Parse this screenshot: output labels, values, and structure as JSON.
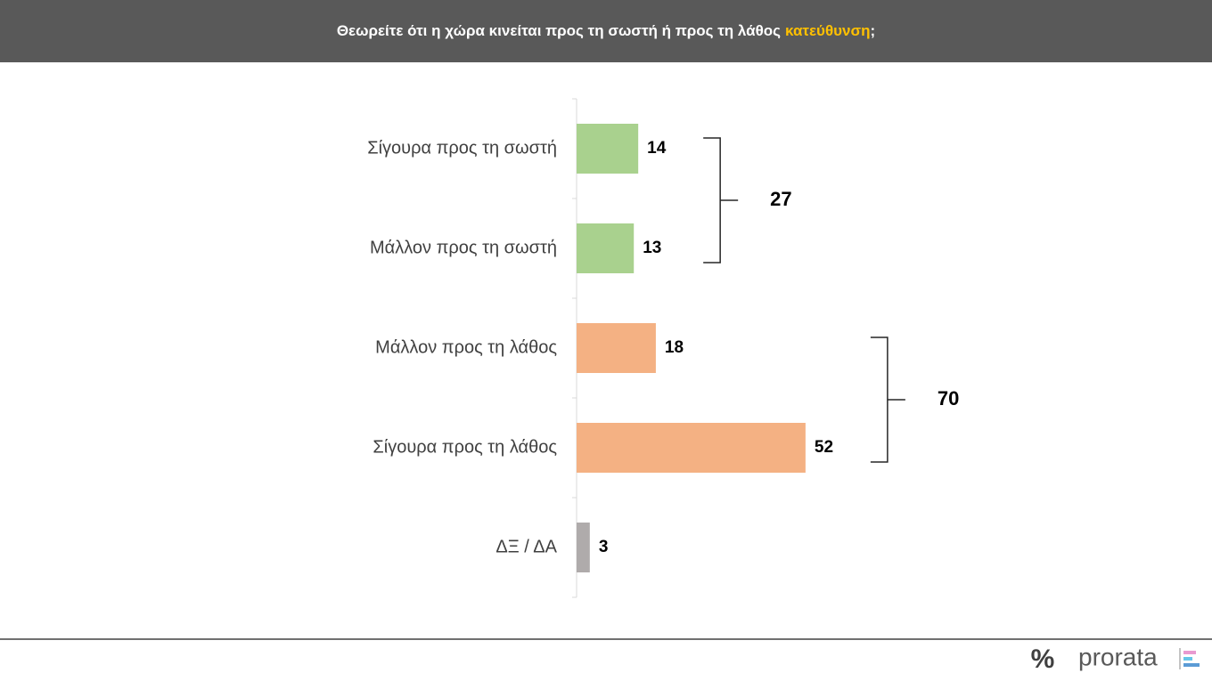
{
  "chart_data": {
    "type": "hbar",
    "title": {
      "text": "Θεωρείτε ότι η χώρα κινείται προς τη σωστή ή προς τη λάθος",
      "highlight": "κατεύθυνση",
      "end": ";"
    },
    "categories": [
      "Σίγουρα προς τη σωστή",
      "Μάλλον προς τη σωστή",
      "Μάλλον προς τη λάθος",
      "Σίγουρα προς τη λάθος",
      "ΔΞ / ΔΑ"
    ],
    "values": [
      14,
      13,
      18,
      52,
      3
    ],
    "colors": [
      "#a9d18e",
      "#a9d18e",
      "#f4b183",
      "#f4b183",
      "#afabab"
    ],
    "groups": [
      {
        "categories": [
          "Σίγουρα προς τη σωστή",
          "Μάλλον προς τη σωστή"
        ],
        "total": 27
      },
      {
        "categories": [
          "Μάλλον προς τη λάθος",
          "Σίγουρα προς τη λάθος"
        ],
        "total": 70
      }
    ]
  },
  "footer": {
    "logo_mark": "%",
    "logo": "prorata"
  }
}
